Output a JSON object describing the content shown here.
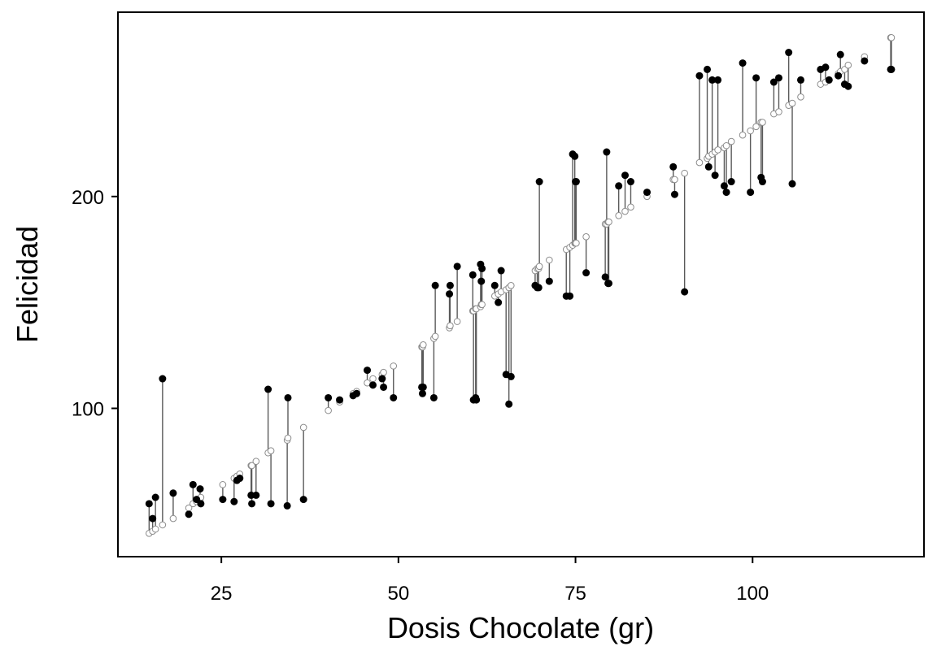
{
  "chart_data": {
    "type": "scatter",
    "title": "",
    "xlabel": "Dosis Chocolate (gr)",
    "ylabel": "Felicidad",
    "xlim": [
      10.4,
      124.2
    ],
    "ylim": [
      30,
      287
    ],
    "xticks": [
      25,
      50,
      75,
      100
    ],
    "yticks": [
      100,
      200
    ],
    "grid": false,
    "legend": "none",
    "colors": {
      "observed": "#000000",
      "fitted_stroke": "#8c8c8c",
      "residual_line": "#5a5a5a"
    },
    "series": [
      {
        "name": "",
        "style": "observed (filled) with fitted (open) and residual segments",
        "x": [
          14.8,
          15.3,
          15.7,
          16.7,
          18.2,
          20.4,
          21.0,
          21.5,
          22.0,
          22.1,
          25.2,
          26.8,
          27.2,
          27.6,
          29.2,
          29.3,
          29.9,
          31.6,
          32.0,
          34.3,
          34.4,
          36.6,
          40.1,
          41.7,
          43.6,
          44.1,
          45.6,
          46.4,
          47.7,
          47.9,
          49.3,
          53.3,
          53.4,
          53.5,
          55.0,
          55.2,
          57.2,
          57.3,
          58.3,
          60.5,
          60.6,
          60.9,
          61.0,
          61.6,
          61.7,
          61.8,
          63.6,
          64.1,
          64.5,
          65.2,
          65.6,
          65.9,
          69.3,
          69.6,
          69.8,
          69.9,
          71.3,
          73.7,
          74.2,
          74.6,
          74.9,
          75.0,
          75.1,
          76.5,
          79.2,
          79.4,
          79.6,
          79.7,
          81.1,
          82.0,
          82.8,
          85.1,
          88.8,
          89.0,
          90.4,
          92.5,
          93.6,
          93.8,
          94.3,
          94.7,
          95.1,
          96.0,
          96.3,
          97.0,
          98.6,
          99.7,
          100.5,
          101.2,
          101.4,
          103.0,
          103.7,
          105.1,
          105.6,
          106.8,
          109.6,
          110.3,
          110.8,
          112.1,
          112.4,
          113.0,
          113.5,
          115.8,
          119.5,
          119.6
        ],
        "observed": [
          55.0,
          48.0,
          58.0,
          114.0,
          60.0,
          50.0,
          64.0,
          57.0,
          62.0,
          55.0,
          57.0,
          56.0,
          66.0,
          67.0,
          59.0,
          55.0,
          59.0,
          109.0,
          55.0,
          54.0,
          105.0,
          57.0,
          105.0,
          104.0,
          106.0,
          107.0,
          118.0,
          111.0,
          114.0,
          110.0,
          105.0,
          110.0,
          107.0,
          110.0,
          105.0,
          158.0,
          154.0,
          158.0,
          167.0,
          163.0,
          104.0,
          105.0,
          104.0,
          168.0,
          160.0,
          166.0,
          158.0,
          150.0,
          165.0,
          116.0,
          102.0,
          115.0,
          158.0,
          157.0,
          157.0,
          207.0,
          160.0,
          153.0,
          153.0,
          220.0,
          219.0,
          207.0,
          207.0,
          164.0,
          162.0,
          221.0,
          159.0,
          159.0,
          205.0,
          210.0,
          207.0,
          202.0,
          214.0,
          201.0,
          155.0,
          257.0,
          260.0,
          214.0,
          255.0,
          210.0,
          255.0,
          205.0,
          202.0,
          207.0,
          263.0,
          202.0,
          256.0,
          209.0,
          207.0,
          254.0,
          256.0,
          268.0,
          206.0,
          255.0,
          260.0,
          261.0,
          255.0,
          257.0,
          267.0,
          253.0,
          252.0,
          264.0,
          260.0,
          260.0
        ],
        "fitted": [
          41.0,
          42.0,
          43.0,
          45.0,
          48.0,
          53.0,
          55.0,
          56.0,
          57.0,
          58.0,
          64.0,
          67.0,
          68.0,
          69.0,
          73.0,
          73.0,
          75.0,
          79.0,
          80.0,
          85.0,
          86.0,
          91.0,
          99.0,
          103.0,
          107.0,
          108.0,
          112.0,
          114.0,
          116.0,
          117.0,
          120.0,
          129.0,
          129.0,
          130.0,
          133.0,
          134.0,
          138.0,
          139.0,
          141.0,
          146.0,
          146.0,
          147.0,
          147.0,
          148.0,
          149.0,
          149.0,
          153.0,
          154.0,
          155.0,
          156.0,
          157.0,
          158.0,
          165.0,
          166.0,
          166.0,
          167.0,
          170.0,
          175.0,
          176.0,
          177.0,
          178.0,
          178.0,
          178.0,
          181.0,
          187.0,
          187.0,
          188.0,
          188.0,
          191.0,
          193.0,
          195.0,
          200.0,
          208.0,
          208.0,
          211.0,
          216.0,
          218.0,
          219.0,
          220.0,
          221.0,
          222.0,
          223.0,
          224.0,
          226.0,
          229.0,
          231.0,
          233.0,
          235.0,
          235.0,
          239.0,
          240.0,
          243.0,
          244.0,
          247.0,
          253.0,
          254.0,
          255.0,
          258.0,
          259.0,
          260.0,
          262.0,
          266.0,
          275.0,
          275.0
        ]
      }
    ]
  }
}
